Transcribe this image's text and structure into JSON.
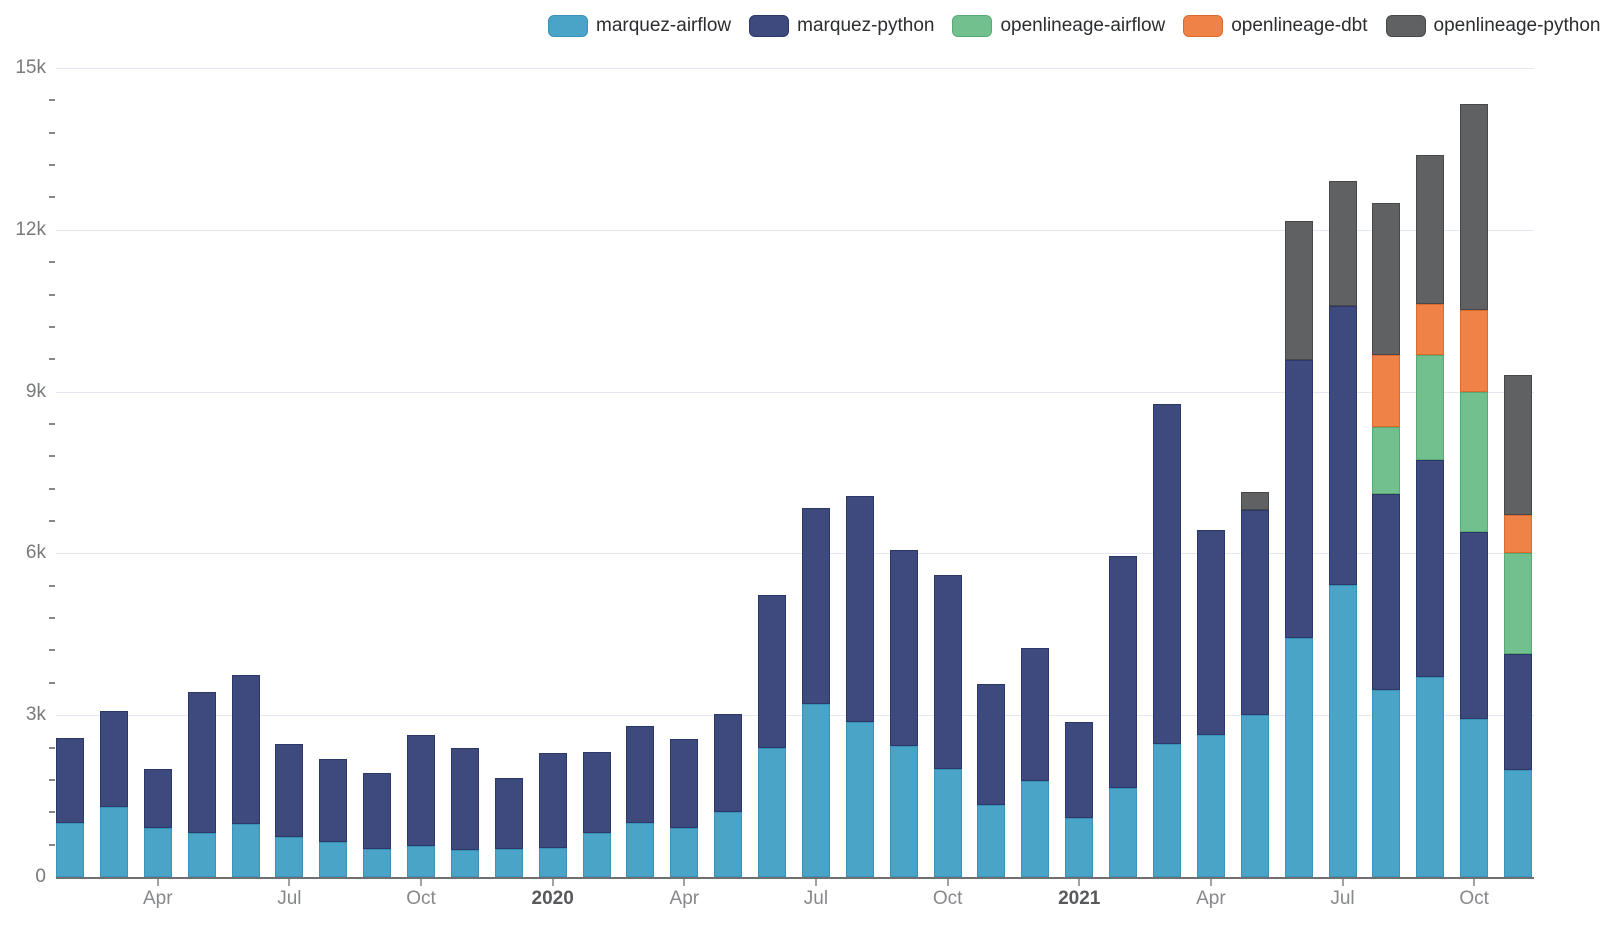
{
  "legend": {
    "items": [
      {
        "label": "marquez-airflow",
        "color": "#4aa4c8"
      },
      {
        "label": "marquez-python",
        "color": "#3e4a7d"
      },
      {
        "label": "openlineage-airflow",
        "color": "#72c08d"
      },
      {
        "label": "openlineage-dbt",
        "color": "#ef8347"
      },
      {
        "label": "openlineage-python",
        "color": "#606163"
      }
    ]
  },
  "chart_data": {
    "type": "bar",
    "stacked": true,
    "title": "",
    "xlabel": "",
    "ylabel": "",
    "ylim": [
      0,
      15000
    ],
    "grid": "horizontal",
    "legend_position": "top",
    "y_ticks": [
      {
        "value": 0,
        "label": "0"
      },
      {
        "value": 3000,
        "label": "3k"
      },
      {
        "value": 6000,
        "label": "6k"
      },
      {
        "value": 9000,
        "label": "9k"
      },
      {
        "value": 12000,
        "label": "12k"
      },
      {
        "value": 15000,
        "label": "15k"
      }
    ],
    "y_minor_step": 600,
    "categories": [
      "Feb 2019",
      "Mar 2019",
      "Apr 2019",
      "May 2019",
      "Jun 2019",
      "Jul 2019",
      "Aug 2019",
      "Sep 2019",
      "Oct 2019",
      "Nov 2019",
      "Dec 2019",
      "Jan 2020",
      "Feb 2020",
      "Mar 2020",
      "Apr 2020",
      "May 2020",
      "Jun 2020",
      "Jul 2020",
      "Aug 2020",
      "Sep 2020",
      "Oct 2020",
      "Nov 2020",
      "Dec 2020",
      "Jan 2021",
      "Feb 2021",
      "Mar 2021",
      "Apr 2021",
      "May 2021",
      "Jun 2021",
      "Jul 2021",
      "Aug 2021",
      "Sep 2021",
      "Oct 2021",
      "Nov 2021"
    ],
    "x_ticks": [
      {
        "index": 2,
        "label": "Apr",
        "bold": false
      },
      {
        "index": 5,
        "label": "Jul",
        "bold": false
      },
      {
        "index": 8,
        "label": "Oct",
        "bold": false
      },
      {
        "index": 11,
        "label": "2020",
        "bold": true
      },
      {
        "index": 14,
        "label": "Apr",
        "bold": false
      },
      {
        "index": 17,
        "label": "Jul",
        "bold": false
      },
      {
        "index": 20,
        "label": "Oct",
        "bold": false
      },
      {
        "index": 23,
        "label": "2021",
        "bold": true
      },
      {
        "index": 26,
        "label": "Apr",
        "bold": false
      },
      {
        "index": 29,
        "label": "Jul",
        "bold": false
      },
      {
        "index": 32,
        "label": "Oct",
        "bold": false
      }
    ],
    "series": [
      {
        "name": "marquez-airflow",
        "color": "#4aa4c8",
        "border_color": "#3a92b8",
        "values": [
          1000,
          1300,
          900,
          820,
          990,
          740,
          650,
          520,
          580,
          500,
          520,
          530,
          820,
          1000,
          910,
          1210,
          2400,
          3200,
          2870,
          2430,
          2000,
          1340,
          1780,
          1100,
          1650,
          2460,
          2630,
          3000,
          4430,
          5420,
          3460,
          3700,
          2930,
          1980
        ]
      },
      {
        "name": "marquez-python",
        "color": "#3e4a7d",
        "border_color": "#2b3868",
        "values": [
          1580,
          1770,
          1100,
          2610,
          2760,
          1730,
          1530,
          1400,
          2050,
          1900,
          1310,
          1770,
          1500,
          1800,
          1640,
          1820,
          2820,
          3650,
          4190,
          3640,
          3600,
          2230,
          2470,
          1770,
          4300,
          6310,
          3800,
          3810,
          5150,
          5160,
          3650,
          4030,
          3460,
          2160
        ]
      },
      {
        "name": "openlineage-airflow",
        "color": "#72c08d",
        "border_color": "#57aa74",
        "values": [
          0,
          0,
          0,
          0,
          0,
          0,
          0,
          0,
          0,
          0,
          0,
          0,
          0,
          0,
          0,
          0,
          0,
          0,
          0,
          0,
          0,
          0,
          0,
          0,
          0,
          0,
          0,
          0,
          0,
          0,
          1240,
          1950,
          2600,
          1870
        ]
      },
      {
        "name": "openlineage-dbt",
        "color": "#ef8347",
        "border_color": "#da6a2d",
        "values": [
          0,
          0,
          0,
          0,
          0,
          0,
          0,
          0,
          0,
          0,
          0,
          0,
          0,
          0,
          0,
          0,
          0,
          0,
          0,
          0,
          0,
          0,
          0,
          0,
          0,
          0,
          0,
          0,
          0,
          0,
          1320,
          950,
          1520,
          700
        ]
      },
      {
        "name": "openlineage-python",
        "color": "#606163",
        "border_color": "#474849",
        "values": [
          0,
          0,
          0,
          0,
          0,
          0,
          0,
          0,
          0,
          0,
          0,
          0,
          0,
          0,
          0,
          0,
          0,
          0,
          0,
          0,
          0,
          0,
          0,
          0,
          0,
          0,
          0,
          330,
          2580,
          2330,
          2830,
          2750,
          3820,
          2600
        ]
      }
    ]
  }
}
